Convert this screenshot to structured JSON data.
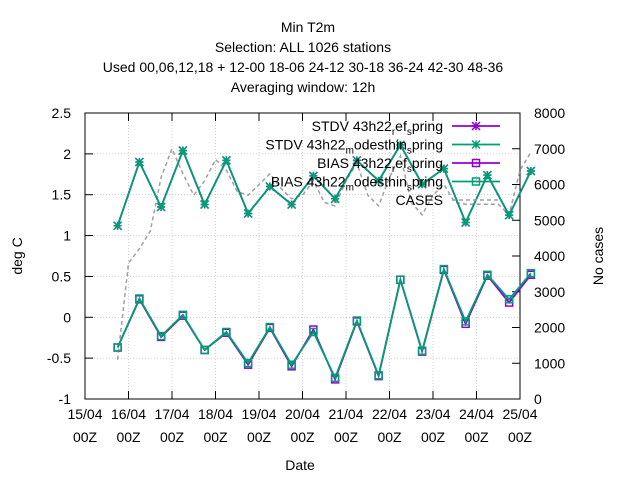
{
  "title_lines": [
    "Min T2m",
    "Selection: ALL   1026 stations",
    "Used  00,06,12,18  + 12-00 18-06 24-12 30-18 36-24 42-30 48-36",
    "Averaging window: 12h"
  ],
  "colors": {
    "stdv_ref": "#9400d3",
    "stdv_mod": "#009e73",
    "bias_ref": "#9400d3",
    "bias_mod": "#009e73",
    "cases": "#a0a0a0"
  },
  "chart_data": {
    "type": "line",
    "title": "Min T2m",
    "xlabel": "Date",
    "ylabel": "deg C",
    "y2label": "No cases",
    "ylim": [
      -1,
      2.5
    ],
    "y2lim": [
      0,
      8000
    ],
    "xlim_days": [
      0,
      10
    ],
    "yticks": [
      "2.5",
      "2",
      "1.5",
      "1",
      "0.5",
      "0",
      "-0.5",
      "-1"
    ],
    "y2ticks": [
      "8000",
      "7000",
      "6000",
      "5000",
      "4000",
      "3000",
      "2000",
      "1000",
      "0"
    ],
    "xticks": [
      [
        "15/04",
        "00Z"
      ],
      [
        "16/04",
        "00Z"
      ],
      [
        "17/04",
        "00Z"
      ],
      [
        "18/04",
        "00Z"
      ],
      [
        "19/04",
        "00Z"
      ],
      [
        "20/04",
        "00Z"
      ],
      [
        "21/04",
        "00Z"
      ],
      [
        "22/04",
        "00Z"
      ],
      [
        "23/04",
        "00Z"
      ],
      [
        "24/04",
        "00Z"
      ],
      [
        "25/04",
        "00Z"
      ]
    ],
    "x": [
      0.75,
      1.25,
      1.75,
      2.25,
      2.75,
      3.25,
      3.75,
      4.25,
      4.75,
      5.25,
      5.75,
      6.25,
      6.75,
      7.25,
      7.75,
      8.25,
      8.75,
      9.25,
      9.75,
      10.25
    ],
    "series": [
      {
        "name": "STDV 43h22_ref_spring",
        "axis": "y1",
        "marker": "x",
        "color_key": "stdv_ref",
        "values": [
          1.12,
          1.9,
          1.35,
          2.04,
          1.38,
          1.92,
          1.27,
          1.6,
          1.38,
          1.73,
          1.45,
          1.92,
          1.67,
          2.11,
          1.63,
          1.82,
          1.16,
          1.74,
          1.25,
          1.79
        ]
      },
      {
        "name": "STDV 43h22_modesthin_spring",
        "axis": "y1",
        "marker": "x",
        "color_key": "stdv_mod",
        "values": [
          1.12,
          1.9,
          1.35,
          2.04,
          1.38,
          1.92,
          1.27,
          1.6,
          1.38,
          1.73,
          1.45,
          1.92,
          1.67,
          2.11,
          1.63,
          1.82,
          1.16,
          1.74,
          1.25,
          1.79
        ]
      },
      {
        "name": "BIAS 43h22_ref_spring",
        "axis": "y1",
        "marker": "square",
        "color_key": "bias_ref",
        "values": [
          -0.37,
          0.22,
          -0.24,
          0.02,
          -0.4,
          -0.19,
          -0.58,
          -0.13,
          -0.6,
          -0.15,
          -0.76,
          -0.05,
          -0.72,
          0.46,
          -0.42,
          0.58,
          -0.08,
          0.51,
          0.18,
          0.52
        ]
      },
      {
        "name": "BIAS 43h22_modesthin_spring",
        "axis": "y1",
        "marker": "square",
        "color_key": "bias_mod",
        "values": [
          -0.37,
          0.23,
          -0.23,
          0.03,
          -0.4,
          -0.18,
          -0.56,
          -0.12,
          -0.58,
          -0.18,
          -0.74,
          -0.04,
          -0.71,
          0.46,
          -0.41,
          0.59,
          -0.05,
          0.52,
          0.22,
          0.54
        ]
      },
      {
        "name": "CASES",
        "axis": "y2",
        "marker": "none",
        "color_key": "cases",
        "dash": true,
        "x": [
          0.75,
          1.0,
          1.25,
          1.5,
          1.75,
          2.0,
          2.25,
          2.5,
          2.75,
          3.0,
          3.25,
          3.5,
          3.75,
          4.0,
          4.25,
          4.5,
          4.75,
          5.0,
          5.25,
          5.5,
          5.75,
          6.0,
          6.25,
          6.5,
          6.75,
          7.0,
          7.25,
          7.5,
          7.75,
          8.0,
          8.25,
          8.5,
          8.75,
          9.0,
          9.25,
          9.5,
          9.75,
          10.0,
          10.25
        ],
        "values": [
          1100,
          3800,
          4200,
          4700,
          6200,
          7000,
          6300,
          5700,
          6100,
          6700,
          6400,
          5800,
          5700,
          6000,
          6300,
          5900,
          5600,
          5700,
          6100,
          5500,
          5400,
          6100,
          6600,
          5700,
          5400,
          6200,
          6800,
          5500,
          5150,
          5700,
          6000,
          5500,
          5450,
          5450,
          5450,
          5450,
          5150,
          6400,
          6900
        ]
      }
    ]
  },
  "legend": [
    {
      "prefix": "STDV 43h22",
      "sub1": "r",
      "mid": "ef",
      "sub2": "s",
      "tail": "pring",
      "marker": "x",
      "color_key": "stdv_ref"
    },
    {
      "prefix": "STDV 43h22",
      "sub1": "m",
      "mid": "odesthin",
      "sub2": "s",
      "tail": "pring",
      "marker": "x",
      "color_key": "stdv_mod"
    },
    {
      "prefix": "BIAS 43h22",
      "sub1": "r",
      "mid": "ef",
      "sub2": "s",
      "tail": "pring",
      "marker": "square",
      "color_key": "bias_ref"
    },
    {
      "prefix": "BIAS 43h22",
      "sub1": "m",
      "mid": "odesthin",
      "sub2": "s",
      "tail": "pring",
      "marker": "square",
      "color_key": "bias_mod"
    },
    {
      "prefix": "CASES",
      "sub1": "",
      "mid": "",
      "sub2": "",
      "tail": "",
      "marker": "none",
      "color_key": "cases"
    }
  ]
}
